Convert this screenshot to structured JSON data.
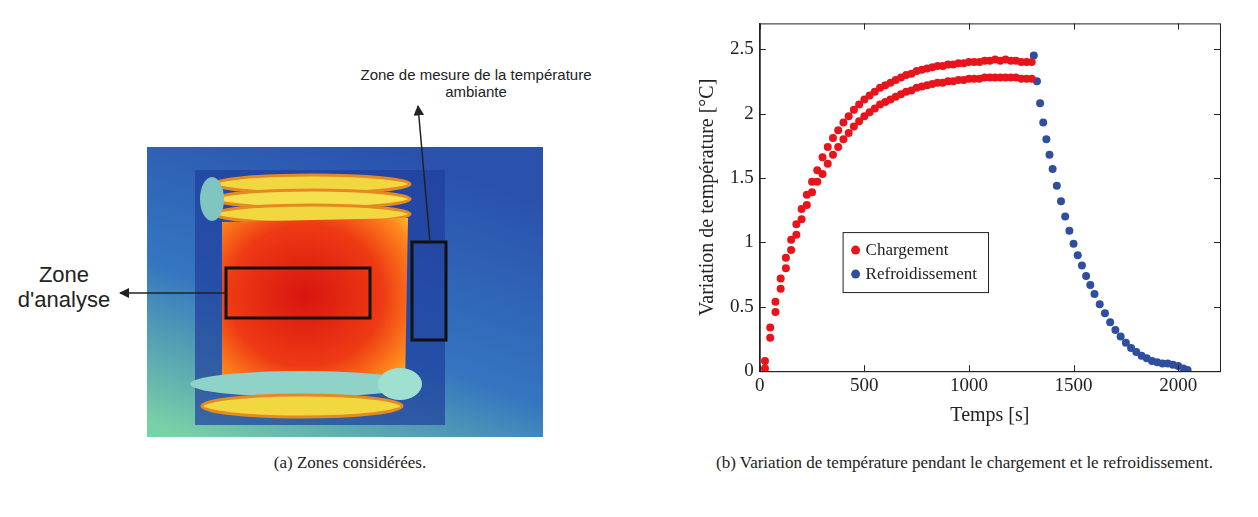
{
  "image_panel": {
    "caption": "(a) Zones considérées.",
    "zone_ambiante": "Zone de mesure de la température ambiante",
    "zone_analyse": "Zone d'analyse"
  },
  "chart_data": {
    "type": "scatter",
    "caption": "(b) Variation de température pendant le chargement et le refroidissement.",
    "x_label": "Temps [s]",
    "y_label": "Variation de température [°C]",
    "xlim": [
      0,
      2200
    ],
    "xticks": [
      0,
      500,
      1000,
      1500,
      2000
    ],
    "ylim": [
      0,
      2.7
    ],
    "yticks": [
      0,
      0.5,
      1,
      1.5,
      2,
      2.5
    ],
    "grid": false,
    "legend": "center",
    "series": [
      {
        "name": "Chargement",
        "color": "#e8141c",
        "marker": "circle",
        "x": [
          25,
          50,
          75,
          100,
          125,
          150,
          175,
          200,
          225,
          250,
          275,
          300,
          325,
          350,
          375,
          400,
          425,
          450,
          475,
          500,
          525,
          550,
          575,
          600,
          625,
          650,
          675,
          700,
          725,
          750,
          775,
          800,
          825,
          850,
          875,
          900,
          925,
          950,
          975,
          1000,
          1025,
          1050,
          1075,
          1100,
          1125,
          1150,
          1175,
          1200,
          1225,
          1250,
          1275,
          1300,
          25,
          50,
          75,
          100,
          125,
          150,
          175,
          200,
          225,
          250,
          275,
          300,
          325,
          350,
          375,
          400,
          425,
          450,
          475,
          500,
          525,
          550,
          575,
          600,
          625,
          650,
          675,
          700,
          725,
          750,
          775,
          800,
          825,
          850,
          875,
          900,
          925,
          950,
          975,
          1000,
          1025,
          1050,
          1075,
          1100,
          1125,
          1150,
          1175,
          1200,
          1225,
          1250,
          1275,
          1300
        ],
        "values": [
          0.08,
          0.34,
          0.54,
          0.72,
          0.88,
          1.02,
          1.14,
          1.26,
          1.37,
          1.47,
          1.56,
          1.66,
          1.74,
          1.81,
          1.87,
          1.93,
          1.98,
          2.03,
          2.07,
          2.11,
          2.14,
          2.17,
          2.2,
          2.22,
          2.24,
          2.26,
          2.28,
          2.3,
          2.31,
          2.33,
          2.34,
          2.35,
          2.36,
          2.37,
          2.37,
          2.38,
          2.38,
          2.39,
          2.39,
          2.4,
          2.4,
          2.4,
          2.41,
          2.41,
          2.42,
          2.41,
          2.42,
          2.41,
          2.41,
          2.4,
          2.4,
          2.4,
          0.02,
          0.26,
          0.46,
          0.64,
          0.8,
          0.94,
          1.06,
          1.18,
          1.29,
          1.39,
          1.47,
          1.53,
          1.61,
          1.68,
          1.74,
          1.8,
          1.85,
          1.9,
          1.94,
          1.98,
          2.01,
          2.04,
          2.07,
          2.09,
          2.11,
          2.13,
          2.15,
          2.17,
          2.18,
          2.2,
          2.21,
          2.22,
          2.23,
          2.24,
          2.24,
          2.25,
          2.25,
          2.26,
          2.26,
          2.27,
          2.27,
          2.27,
          2.28,
          2.28,
          2.28,
          2.28,
          2.28,
          2.28,
          2.28,
          2.27,
          2.27,
          2.27
        ]
      },
      {
        "name": "Refroidissement",
        "color": "#2f4f9e",
        "marker": "circle",
        "x": [
          1310,
          1325,
          1340,
          1355,
          1370,
          1385,
          1400,
          1420,
          1440,
          1460,
          1480,
          1500,
          1520,
          1540,
          1560,
          1580,
          1600,
          1625,
          1650,
          1675,
          1700,
          1725,
          1750,
          1775,
          1800,
          1825,
          1850,
          1875,
          1900,
          1925,
          1950,
          1975,
          2000,
          2025,
          2045
        ],
        "values": [
          2.45,
          2.25,
          2.08,
          1.93,
          1.8,
          1.68,
          1.57,
          1.44,
          1.32,
          1.2,
          1.09,
          0.99,
          0.9,
          0.82,
          0.74,
          0.67,
          0.6,
          0.52,
          0.45,
          0.38,
          0.32,
          0.27,
          0.22,
          0.18,
          0.15,
          0.12,
          0.1,
          0.08,
          0.07,
          0.06,
          0.06,
          0.05,
          0.04,
          0.02,
          0.01
        ]
      }
    ]
  }
}
